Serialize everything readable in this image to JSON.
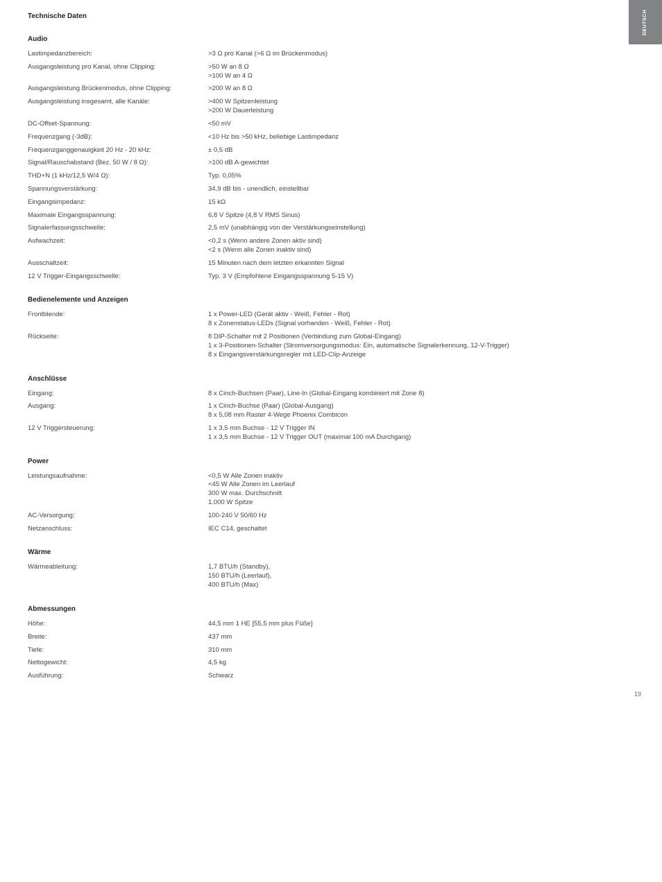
{
  "sideTab": "DEUTSCH",
  "title": "Technische Daten",
  "pageNumber": "19",
  "sections": [
    {
      "heading": "Audio",
      "rows": [
        {
          "label": "Lastimpedanzbereich:",
          "value": ">3 Ω pro Kanal (>6 Ω im Brückenmodus)"
        },
        {
          "label": "Ausgangsleistung pro Kanal, ohne Clipping:",
          "value": ">50 W an 8 Ω\n>100 W an 4 Ω"
        },
        {
          "label": "Ausgangsleistung Brückenmodus, ohne Clipping:",
          "value": ">200 W an 8 Ω"
        },
        {
          "label": "Ausgangsleistung insgesamt, alle Kanäle:",
          "value": ">400 W Spitzenleistung\n>200 W Dauerleistung"
        },
        {
          "label": "DC-Offset-Spannung:",
          "value": "<50 mV"
        },
        {
          "label": "Frequenzgang (-3dB):",
          "value": "<10 Hz bis >50 kHz, beliebige Lastimpedanz"
        },
        {
          "label": "Frequenzganggenauigkeit 20 Hz - 20 kHz:",
          "value": "± 0,5 dB"
        },
        {
          "label": "Signal/Rauschabstand (Bez. 50 W / 8 Ω):",
          "value": ">100 dB A-gewichtet"
        },
        {
          "label": "THD+N (1 kHz/12,5 W/4 Ω):",
          "value": "Typ. 0,05%"
        },
        {
          "label": "Spannungsverstärkung:",
          "value": "34,9 dB bis - unendlich, einstellbar"
        },
        {
          "label": "Eingangsimpedanz:",
          "value": "15 kΩ"
        },
        {
          "label": "Maximale Eingangsspannung:",
          "value": "6,8 V Spitze (4,8 V RMS Sinus)"
        },
        {
          "label": "Signalerfassungsschwelle:",
          "value": "2,5 mV (unabhängig von der Verstärkungseinstellung)"
        },
        {
          "label": "Aufwachzeit:",
          "value": "<0,2 s (Wenn andere Zonen aktiv sind)\n<2 s (Wenn alle Zonen inaktiv sind)"
        },
        {
          "label": "Ausschaltzeit:",
          "value": "15 Minuten nach dem letzten erkannten Signal"
        },
        {
          "label": "12 V Trigger-Eingangsschwelle:",
          "value": "Typ. 3 V (Empfohlene Eingangsspannung 5-15 V)"
        }
      ]
    },
    {
      "heading": "Bedienelemente und Anzeigen",
      "rows": [
        {
          "label": "Frontblende:",
          "value": "1 x Power-LED (Gerät aktiv - Weiß, Fehler - Rot)\n8 x Zonenstatus-LEDs (Signal vorhanden - Weiß, Fehler - Rot)"
        },
        {
          "label": "Rückseite:",
          "value": "8 DIP-Schalter mit 2 Positionen (Verbindung zum Global-Eingang)\n1 x 3-Positionen-Schalter (Stromversorgungsmodus: Ein, automatische Signalerkennung, 12-V-Trigger)\n8 x Eingangsverstärkungsregler mit LED-Clip-Anzeige"
        }
      ]
    },
    {
      "heading": "Anschlüsse",
      "rows": [
        {
          "label": "Eingang:",
          "value": "8 x Cinch-Buchsen (Paar), Line-In (Global-Eingang kombiniert mit Zone 8)"
        },
        {
          "label": "Ausgang:",
          "value": "1 x Cinch-Buchse (Paar) (Global-Ausgang)\n8 x 5,08 mm Raster 4-Wege Phoenix Combicon"
        },
        {
          "label": "12 V Triggersteuerung:",
          "value": "1 x 3,5 mm Buchse - 12 V Trigger IN\n1 x 3,5 mm Buchse - 12 V Trigger OUT (maximal 100 mA Durchgang)"
        }
      ]
    },
    {
      "heading": "Power",
      "rows": [
        {
          "label": "Leistungsaufnahme:",
          "value": "<0,5 W Alle Zonen inaktiv\n<45 W Alle Zonen im Leerlauf\n300 W max. Durchschnitt\n1.000 W Spitze"
        },
        {
          "label": "AC-Versorgung:",
          "value": "100-240 V 50/60 Hz"
        },
        {
          "label": "Netzanschluss:",
          "value": "IEC C14, geschaltet"
        }
      ]
    },
    {
      "heading": "Wärme",
      "rows": [
        {
          "label": "Wärmeableitung:",
          "value": "1,7 BTU/h (Standby),\n150 BTU/h (Leerlauf),\n400 BTU/h (Max)"
        }
      ]
    },
    {
      "heading": "Abmessungen",
      "rows": [
        {
          "label": "Höhe:",
          "value": "44,5 mm 1 HE [55,5 mm plus Füße]"
        },
        {
          "label": "Breite:",
          "value": "437 mm"
        },
        {
          "label": "Tiefe:",
          "value": "310 mm"
        },
        {
          "label": "Nettogewicht:",
          "value": "4,5 kg"
        },
        {
          "label": "Ausführung:",
          "value": "Schwarz"
        }
      ]
    }
  ]
}
